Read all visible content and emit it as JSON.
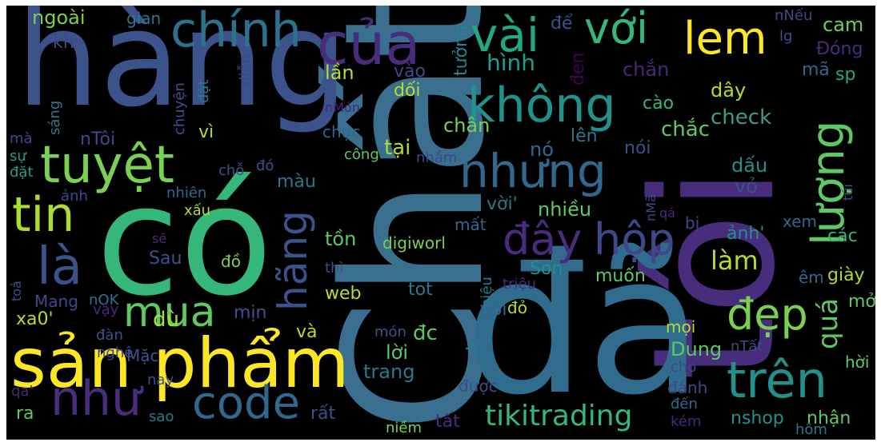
{
  "words": [
    {
      "text": "Chất",
      "color": "#3b6f8f"
    },
    {
      "text": "tôi",
      "color": "#472d7b"
    },
    {
      "text": "đã",
      "color": "#2f6c8e"
    },
    {
      "text": "có",
      "color": "#35b779"
    },
    {
      "text": "hàng",
      "color": "#3b528b"
    },
    {
      "text": "sản",
      "color": "#fde725"
    },
    {
      "text": "phẩm",
      "color": "#fde725"
    },
    {
      "text": "của",
      "color": "#472d7b"
    },
    {
      "text": "chính",
      "color": "#2c728e"
    },
    {
      "text": "vài",
      "color": "#22a884"
    },
    {
      "text": "với",
      "color": "#35b779"
    },
    {
      "text": "lem",
      "color": "#fde725"
    },
    {
      "text": "không",
      "color": "#21918c"
    },
    {
      "text": "nhưng",
      "color": "#31688e"
    },
    {
      "text": "hãng",
      "color": "#3b528b"
    },
    {
      "text": "tuyệt",
      "color": "#7ad151"
    },
    {
      "text": "tin",
      "color": "#addc30"
    },
    {
      "text": "là",
      "color": "#3b528b"
    },
    {
      "text": "mua",
      "color": "#5ec962"
    },
    {
      "text": "như",
      "color": "#472d7b"
    },
    {
      "text": "code",
      "color": "#31688e"
    },
    {
      "text": "đây",
      "color": "#472d7b"
    },
    {
      "text": "hộp",
      "color": "#3e4989"
    },
    {
      "text": "lượng",
      "color": "#5ec962"
    },
    {
      "text": "đẹp",
      "color": "#7ad151"
    },
    {
      "text": "trên",
      "color": "#21918c"
    },
    {
      "text": "làm",
      "color": "#b5de2b"
    },
    {
      "text": "tikitrading",
      "color": "#35b779"
    },
    {
      "text": "quá",
      "color": "#5ec962"
    },
    {
      "text": "ngoài",
      "color": "#7ad151"
    },
    {
      "text": "gian",
      "color": "#2a788e"
    },
    {
      "text": "khi",
      "color": "#3e4989"
    },
    {
      "text": "hình",
      "color": "#1f9e89"
    },
    {
      "text": "lần",
      "color": "#b5de2b"
    },
    {
      "text": "vào",
      "color": "#3e4989"
    },
    {
      "text": "đen",
      "color": "#440154"
    },
    {
      "text": "chắn",
      "color": "#482878"
    },
    {
      "text": "mã",
      "color": "#31688e"
    },
    {
      "text": "sp",
      "color": "#22a884"
    },
    {
      "text": "cam",
      "color": "#6ece58"
    },
    {
      "text": "Đóng",
      "color": "#472d7b"
    },
    {
      "text": "để",
      "color": "#3b528b"
    },
    {
      "text": "tưởng",
      "color": "#26828e"
    },
    {
      "text": "nNếu",
      "color": "#3e4989"
    },
    {
      "text": "lg",
      "color": "#3b528b"
    },
    {
      "text": "dối",
      "color": "#b5de2b"
    },
    {
      "text": "dây",
      "color": "#b5de2b"
    },
    {
      "text": "cào",
      "color": "#35b779"
    },
    {
      "text": "check",
      "color": "#3e9a8b"
    },
    {
      "text": "chắc",
      "color": "#5ec962"
    },
    {
      "text": "nTôi",
      "color": "#3e4989"
    },
    {
      "text": "chục",
      "color": "#31688e"
    },
    {
      "text": "chân",
      "color": "#7ad151"
    },
    {
      "text": "tại",
      "color": "#addc30"
    },
    {
      "text": "nó",
      "color": "#31688e"
    },
    {
      "text": "lên",
      "color": "#2a788e"
    },
    {
      "text": "nói",
      "color": "#3b528b"
    },
    {
      "text": "công",
      "color": "#5ec962"
    },
    {
      "text": "nhầm",
      "color": "#3e4989"
    },
    {
      "text": "vì",
      "color": "#addc30"
    },
    {
      "text": "mà",
      "color": "#3e4989"
    },
    {
      "text": "sáng",
      "color": "#2a788e"
    },
    {
      "text": "chuyện",
      "color": "#3b528b"
    },
    {
      "text": "đặt",
      "color": "#2a788e"
    },
    {
      "text": "diễn",
      "color": "#3e4989"
    },
    {
      "text": "nMón",
      "color": "#482878"
    },
    {
      "text": "sự",
      "color": "#1f9e89"
    },
    {
      "text": "đặt",
      "color": "#1f9e89"
    },
    {
      "text": "chỗ",
      "color": "#3b528b"
    },
    {
      "text": "đó",
      "color": "#3b528b"
    },
    {
      "text": "màu",
      "color": "#2a788e"
    },
    {
      "text": "ảnh",
      "color": "#3e4989"
    },
    {
      "text": "nhiên",
      "color": "#31688e"
    },
    {
      "text": "xấu",
      "color": "#b5de2b"
    },
    {
      "text": "dấu",
      "color": "#21918c"
    },
    {
      "text": "vỏ",
      "color": "#3b528b"
    },
    {
      "text": "vời'",
      "color": "#2a788e"
    },
    {
      "text": "nhiều",
      "color": "#5ec962"
    },
    {
      "text": "nMã",
      "color": "#3e4989"
    },
    {
      "text": "qá",
      "color": "#482878"
    },
    {
      "text": "túi",
      "color": "#3b528b"
    },
    {
      "text": "xem",
      "color": "#31688e"
    },
    {
      "text": "bị",
      "color": "#3e4989"
    },
    {
      "text": "các",
      "color": "#35b779"
    },
    {
      "text": "mất",
      "color": "#31688e"
    },
    {
      "text": "tồn",
      "color": "#5ec962"
    },
    {
      "text": "digiworl",
      "color": "#7ad151"
    },
    {
      "text": "ảnh'",
      "color": "#21918c"
    },
    {
      "text": "sẽ",
      "color": "#472d7b"
    },
    {
      "text": "Sau",
      "color": "#3b528b"
    },
    {
      "text": "đồ",
      "color": "#7ad151"
    },
    {
      "text": "thì",
      "color": "#3b528b"
    },
    {
      "text": "hiệu",
      "color": "#2a788e"
    },
    {
      "text": "Son",
      "color": "#21918c"
    },
    {
      "text": "muốn",
      "color": "#5ec962"
    },
    {
      "text": "êm",
      "color": "#31688e"
    },
    {
      "text": "giày",
      "color": "#addc30"
    },
    {
      "text": "toả",
      "color": "#3b528b"
    },
    {
      "text": "Mang",
      "color": "#3e4989"
    },
    {
      "text": "nOK",
      "color": "#2c728e"
    },
    {
      "text": "triệu",
      "color": "#472d7b"
    },
    {
      "text": "web",
      "color": "#b5de2b"
    },
    {
      "text": "tot",
      "color": "#2a788e"
    },
    {
      "text": "mở",
      "color": "#5ec962"
    },
    {
      "text": "mịn",
      "color": "#3b528b"
    },
    {
      "text": "gói",
      "color": "#31688e"
    },
    {
      "text": "đỏ",
      "color": "#b5de2b"
    },
    {
      "text": "xa0'",
      "color": "#b5de2b"
    },
    {
      "text": "vậy",
      "color": "#482878"
    },
    {
      "text": "đàn",
      "color": "#3b528b"
    },
    {
      "text": "dù",
      "color": "#addc30"
    },
    {
      "text": "và",
      "color": "#b5de2b"
    },
    {
      "text": "dc",
      "color": "#2a788e"
    },
    {
      "text": "đc",
      "color": "#5ec962"
    },
    {
      "text": "món",
      "color": "#3b528b"
    },
    {
      "text": "mọi",
      "color": "#b5de2b"
    },
    {
      "text": "Dung",
      "color": "#5ec962"
    },
    {
      "text": "nTất",
      "color": "#3e4989"
    },
    {
      "text": "nghệ",
      "color": "#3e4989"
    },
    {
      "text": "Mặc",
      "color": "#3b528b"
    },
    {
      "text": "lời",
      "color": "#5ec962"
    },
    {
      "text": "trang",
      "color": "#2a788e"
    },
    {
      "text": "cho",
      "color": "#3e4989"
    },
    {
      "text": "hời",
      "color": "#5ec962"
    },
    {
      "text": "qa'",
      "color": "#482878"
    },
    {
      "text": "nay",
      "color": "#3b528b"
    },
    {
      "text": "được",
      "color": "#3e4989"
    },
    {
      "text": "đánh",
      "color": "#3e4989"
    },
    {
      "text": "ra",
      "color": "#5ec962"
    },
    {
      "text": "sao",
      "color": "#2a788e"
    },
    {
      "text": "rất",
      "color": "#3b528b"
    },
    {
      "text": "đến",
      "color": "#31688e"
    },
    {
      "text": "nshop",
      "color": "#21918c"
    },
    {
      "text": "nhận",
      "color": "#5ec962"
    },
    {
      "text": "tất",
      "color": "#472d7b"
    },
    {
      "text": "niềm",
      "color": "#7ad151"
    },
    {
      "text": "kém",
      "color": "#482878"
    },
    {
      "text": "hôm",
      "color": "#2a788e"
    }
  ]
}
